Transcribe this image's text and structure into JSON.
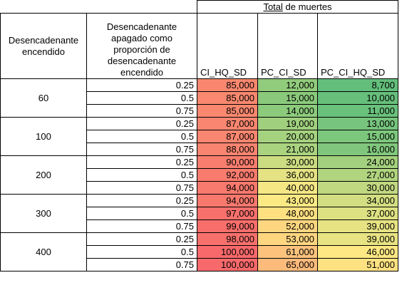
{
  "table": {
    "title_underlined": "Total",
    "title_rest": " de muertes",
    "headers": {
      "trigger_on": "Desencadenante encendido",
      "trigger_off": "Desencadenante apagado como proporción de desencadenante encendido",
      "col1": "CI_HQ_SD",
      "col2": "PC_CI_SD",
      "col3": "PC_CI_HQ_SD"
    },
    "groups": [
      {
        "trigger": "60",
        "rows": [
          {
            "ratio": "0.25",
            "v": [
              "85,000",
              "12,000",
              "8,700"
            ]
          },
          {
            "ratio": "0.5",
            "v": [
              "85,000",
              "15,000",
              "10,000"
            ]
          },
          {
            "ratio": "0.75",
            "v": [
              "85,000",
              "14,000",
              "11,000"
            ]
          }
        ]
      },
      {
        "trigger": "100",
        "rows": [
          {
            "ratio": "0.25",
            "v": [
              "87,000",
              "19,000",
              "13,000"
            ]
          },
          {
            "ratio": "0.5",
            "v": [
              "87,000",
              "20,000",
              "15,000"
            ]
          },
          {
            "ratio": "0.75",
            "v": [
              "88,000",
              "21,000",
              "16,000"
            ]
          }
        ]
      },
      {
        "trigger": "200",
        "rows": [
          {
            "ratio": "0.25",
            "v": [
              "90,000",
              "30,000",
              "24,000"
            ]
          },
          {
            "ratio": "0.5",
            "v": [
              "92,000",
              "36,000",
              "27,000"
            ]
          },
          {
            "ratio": "0.75",
            "v": [
              "94,000",
              "40,000",
              "30,000"
            ]
          }
        ]
      },
      {
        "trigger": "300",
        "rows": [
          {
            "ratio": "0.25",
            "v": [
              "94,000",
              "43,000",
              "34,000"
            ]
          },
          {
            "ratio": "0.5",
            "v": [
              "97,000",
              "48,000",
              "37,000"
            ]
          },
          {
            "ratio": "0.75",
            "v": [
              "99,000",
              "52,000",
              "39,000"
            ]
          }
        ]
      },
      {
        "trigger": "400",
        "rows": [
          {
            "ratio": "0.25",
            "v": [
              "98,000",
              "53,000",
              "39,000"
            ]
          },
          {
            "ratio": "0.5",
            "v": [
              "100,000",
              "61,000",
              "46,000"
            ]
          },
          {
            "ratio": "0.75",
            "v": [
              "100,000",
              "65,000",
              "51,000"
            ]
          }
        ]
      }
    ],
    "colors": {
      "g1": [
        [
          "#f9876f",
          "#91cb7c",
          "#63be7b"
        ],
        [
          "#f9886f",
          "#8ac97b",
          "#66bf7b"
        ],
        [
          "#f9886f",
          "#8ccb7c",
          "#6ac17c"
        ]
      ],
      "g2": [
        [
          "#f98670",
          "#a0d07e",
          "#76c47d"
        ],
        [
          "#f98670",
          "#a5d27f",
          "#7dc77d"
        ],
        [
          "#f98570",
          "#aad380",
          "#80c77d"
        ]
      ],
      "g3": [
        [
          "#f87d6e",
          "#cbdc81",
          "#a3d07e"
        ],
        [
          "#f97b6e",
          "#e5e283",
          "#b1d47f"
        ],
        [
          "#f8796d",
          "#f4e784",
          "#c0d880"
        ]
      ],
      "g4": [
        [
          "#f8786d",
          "#fbe983",
          "#d2de81"
        ],
        [
          "#f8706c",
          "#fee081",
          "#dde182"
        ],
        [
          "#f86e6b",
          "#fed680",
          "#e7e383"
        ]
      ],
      "g5": [
        [
          "#f8706c",
          "#fed680",
          "#e8e383"
        ],
        [
          "#f8696b",
          "#fdc37d",
          "#fde883"
        ],
        [
          "#f8696b",
          "#fcba7b",
          "#fee181"
        ]
      ]
    }
  }
}
